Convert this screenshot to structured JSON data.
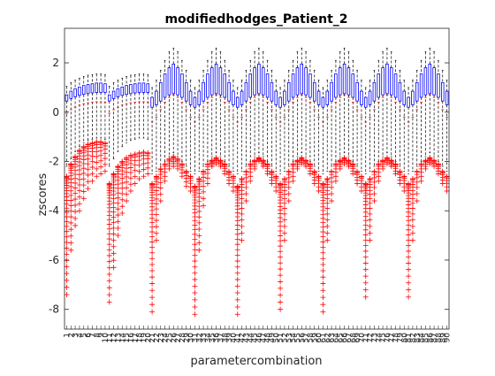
{
  "chart_data": {
    "type": "box",
    "title": "modifiedhodges_Patient_2",
    "xlabel": "parametercombination",
    "ylabel": "zscores",
    "ylim": [
      -8.8,
      3.4
    ],
    "yticks": [
      2,
      0,
      -2,
      -4,
      -6,
      -8
    ],
    "ytick_labels": [
      "2",
      "0",
      "-2",
      "-4",
      "-6",
      "-8"
    ],
    "x_categories": {
      "from": 1,
      "to": 90
    },
    "grid": false,
    "legend": "none",
    "colors": {
      "box": "#0000ff",
      "median": "#ff0000",
      "whisker": "#000000",
      "outlier": "#ff0000",
      "axes": "#262626"
    },
    "boxes_summary": "90 box plots; each box shows q1, median, q3, whisker low/high (data units)",
    "box_stats": {
      "q1": [
        0.45,
        0.55,
        0.62,
        0.68,
        0.72,
        0.75,
        0.78,
        0.8,
        0.8,
        0.8,
        0.45,
        0.55,
        0.62,
        0.68,
        0.72,
        0.75,
        0.78,
        0.8,
        0.8,
        0.8,
        0.2,
        0.3,
        0.45,
        0.6,
        0.7,
        0.75,
        0.7,
        0.6,
        0.45,
        0.3,
        0.2,
        0.3,
        0.45,
        0.6,
        0.7,
        0.75,
        0.7,
        0.6,
        0.45,
        0.3,
        0.2,
        0.3,
        0.45,
        0.6,
        0.7,
        0.75,
        0.7,
        0.6,
        0.45,
        0.3,
        0.2,
        0.3,
        0.45,
        0.6,
        0.7,
        0.75,
        0.7,
        0.6,
        0.45,
        0.3,
        0.2,
        0.3,
        0.45,
        0.6,
        0.7,
        0.75,
        0.7,
        0.6,
        0.45,
        0.3,
        0.2,
        0.3,
        0.45,
        0.6,
        0.7,
        0.75,
        0.7,
        0.6,
        0.45,
        0.3,
        0.2,
        0.3,
        0.45,
        0.6,
        0.7,
        0.75,
        0.7,
        0.6,
        0.45,
        0.3
      ],
      "median": [
        -0.05,
        0.1,
        0.2,
        0.28,
        0.34,
        0.38,
        0.4,
        0.42,
        0.42,
        0.4,
        -0.05,
        0.1,
        0.2,
        0.28,
        0.34,
        0.38,
        0.4,
        0.42,
        0.42,
        0.4,
        -0.4,
        -0.2,
        0.1,
        0.4,
        0.6,
        0.7,
        0.6,
        0.4,
        0.1,
        -0.2,
        -0.4,
        -0.2,
        0.1,
        0.4,
        0.6,
        0.7,
        0.6,
        0.4,
        0.1,
        -0.2,
        -0.4,
        -0.2,
        0.1,
        0.4,
        0.6,
        0.7,
        0.6,
        0.4,
        0.1,
        -0.2,
        -0.4,
        -0.2,
        0.1,
        0.4,
        0.6,
        0.7,
        0.6,
        0.4,
        0.1,
        -0.2,
        -0.4,
        -0.2,
        0.1,
        0.4,
        0.6,
        0.7,
        0.6,
        0.4,
        0.1,
        -0.2,
        -0.4,
        -0.2,
        0.1,
        0.4,
        0.6,
        0.7,
        0.6,
        0.4,
        0.1,
        -0.2,
        -0.4,
        -0.2,
        0.1,
        0.4,
        0.6,
        0.7,
        0.6,
        0.4,
        0.1,
        -0.2
      ],
      "q3": [
        0.7,
        0.85,
        0.95,
        1.02,
        1.08,
        1.12,
        1.15,
        1.18,
        1.18,
        1.15,
        0.7,
        0.85,
        0.95,
        1.02,
        1.08,
        1.12,
        1.15,
        1.18,
        1.18,
        1.15,
        0.6,
        0.85,
        1.2,
        1.55,
        1.8,
        1.95,
        1.8,
        1.55,
        1.2,
        0.85,
        0.6,
        0.85,
        1.2,
        1.55,
        1.8,
        1.95,
        1.8,
        1.55,
        1.2,
        0.85,
        0.6,
        0.85,
        1.2,
        1.55,
        1.8,
        1.95,
        1.8,
        1.55,
        1.2,
        0.85,
        0.6,
        0.85,
        1.2,
        1.55,
        1.8,
        1.95,
        1.8,
        1.55,
        1.2,
        0.85,
        0.6,
        0.85,
        1.2,
        1.55,
        1.8,
        1.95,
        1.8,
        1.55,
        1.2,
        0.85,
        0.6,
        0.85,
        1.2,
        1.55,
        1.8,
        1.95,
        1.8,
        1.55,
        1.2,
        0.85,
        0.6,
        0.85,
        1.2,
        1.55,
        1.8,
        1.95,
        1.8,
        1.55,
        1.2,
        0.85
      ],
      "whisker_high": [
        1.05,
        1.2,
        1.3,
        1.38,
        1.45,
        1.5,
        1.52,
        1.55,
        1.55,
        1.52,
        1.05,
        1.2,
        1.3,
        1.38,
        1.45,
        1.5,
        1.52,
        1.55,
        1.55,
        1.52,
        1.0,
        1.3,
        1.7,
        2.1,
        2.45,
        2.6,
        2.45,
        2.1,
        1.7,
        1.3,
        1.0,
        1.3,
        1.7,
        2.1,
        2.45,
        2.6,
        2.45,
        2.1,
        1.7,
        1.3,
        1.0,
        1.3,
        1.7,
        2.1,
        2.45,
        2.6,
        2.45,
        2.1,
        1.7,
        1.3,
        1.0,
        1.3,
        1.7,
        2.1,
        2.45,
        2.6,
        2.45,
        2.1,
        1.7,
        1.3,
        1.0,
        1.3,
        1.7,
        2.1,
        2.45,
        2.6,
        2.45,
        2.1,
        1.7,
        1.3,
        1.0,
        1.3,
        1.7,
        2.1,
        2.45,
        2.6,
        2.45,
        2.1,
        1.7,
        1.3,
        1.0,
        1.3,
        1.7,
        2.1,
        2.45,
        2.6,
        2.45,
        2.1,
        1.7,
        1.3
      ],
      "whisker_low": [
        -2.2,
        -1.9,
        -1.6,
        -1.4,
        -1.25,
        -1.15,
        -1.1,
        -1.05,
        -1.05,
        -1.1,
        -2.2,
        -1.9,
        -1.6,
        -1.4,
        -1.25,
        -1.15,
        -1.1,
        -1.05,
        -1.05,
        -1.1,
        -2.5,
        -2.4,
        -2.2,
        -2.0,
        -1.8,
        -1.65,
        -1.8,
        -2.0,
        -2.2,
        -2.4,
        -2.5,
        -2.4,
        -2.2,
        -2.0,
        -1.8,
        -1.65,
        -1.8,
        -2.0,
        -2.2,
        -2.4,
        -2.5,
        -2.4,
        -2.2,
        -2.0,
        -1.8,
        -1.65,
        -1.8,
        -2.0,
        -2.2,
        -2.4,
        -2.5,
        -2.4,
        -2.2,
        -2.0,
        -1.8,
        -1.65,
        -1.8,
        -2.0,
        -2.2,
        -2.4,
        -2.5,
        -2.4,
        -2.2,
        -2.0,
        -1.8,
        -1.65,
        -1.8,
        -2.0,
        -2.2,
        -2.4,
        -2.5,
        -2.4,
        -2.2,
        -2.0,
        -1.8,
        -1.65,
        -1.8,
        -2.0,
        -2.2,
        -2.4,
        -2.5,
        -2.4,
        -2.2,
        -2.0,
        -1.8,
        -1.65,
        -1.8,
        -2.0,
        -2.2,
        -2.4
      ]
    },
    "outlier_summary": "red '+' outliers below whiskers; dense columns at parameter combinations 1-20 (approx -1.2 to -7.4) and at group starts 21, 31, 41, 51, 61, 71, 81 (approx -2.9 to -8.2)",
    "outlier_min": [
      -7.4,
      -5.6,
      -4.6,
      -4.0,
      -3.5,
      -3.1,
      -2.8,
      -2.6,
      -2.5,
      -2.4,
      -7.7,
      -6.3,
      -5.0,
      -4.1,
      -3.6,
      -3.2,
      -2.9,
      -2.7,
      -2.6,
      -2.5,
      -8.1,
      -5.2,
      -3.6,
      -2.8,
      -2.3,
      -2.2,
      -2.3,
      -2.6,
      -3.0,
      -3.2,
      -8.2,
      -5.6,
      -3.8,
      -2.9,
      -2.2,
      -2.1,
      -2.2,
      -2.5,
      -2.9,
      -3.2,
      -8.2,
      -5.2,
      -3.6,
      -2.8,
      -2.3,
      -2.0,
      -2.2,
      -2.5,
      -2.9,
      -3.2,
      -8.0,
      -5.2,
      -3.6,
      -2.8,
      -2.3,
      -2.1,
      -2.2,
      -2.5,
      -2.9,
      -3.2,
      -8.1,
      -5.2,
      -3.6,
      -2.8,
      -2.3,
      -2.1,
      -2.2,
      -2.5,
      -2.9,
      -3.2,
      -7.5,
      -5.2,
      -3.6,
      -2.8,
      -2.3,
      -2.1,
      -2.2,
      -2.5,
      -2.9,
      -3.2,
      -7.5,
      -5.2,
      -3.6,
      -2.8,
      -2.3,
      -2.1,
      -2.2,
      -2.5,
      -2.9,
      -3.2
    ],
    "outlier_top": [
      -2.6,
      -2.1,
      -1.8,
      -1.55,
      -1.4,
      -1.3,
      -1.25,
      -1.2,
      -1.2,
      -1.25,
      -2.9,
      -2.5,
      -2.2,
      -2.0,
      -1.85,
      -1.75,
      -1.7,
      -1.65,
      -1.62,
      -1.65,
      -2.9,
      -2.6,
      -2.3,
      -2.1,
      -1.9,
      -1.8,
      -1.9,
      -2.1,
      -2.4,
      -2.6,
      -3.0,
      -2.7,
      -2.4,
      -2.1,
      -1.95,
      -1.85,
      -1.95,
      -2.1,
      -2.4,
      -2.6,
      -3.0,
      -2.7,
      -2.4,
      -2.1,
      -1.95,
      -1.85,
      -1.95,
      -2.1,
      -2.4,
      -2.6,
      -2.9,
      -2.7,
      -2.4,
      -2.1,
      -1.95,
      -1.85,
      -1.95,
      -2.1,
      -2.4,
      -2.6,
      -2.9,
      -2.7,
      -2.4,
      -2.1,
      -1.95,
      -1.85,
      -1.95,
      -2.1,
      -2.4,
      -2.6,
      -2.9,
      -2.7,
      -2.4,
      -2.1,
      -1.95,
      -1.85,
      -1.95,
      -2.1,
      -2.4,
      -2.6,
      -2.9,
      -2.7,
      -2.4,
      -2.1,
      -1.95,
      -1.85,
      -1.95,
      -2.1,
      -2.4,
      -2.6
    ]
  }
}
